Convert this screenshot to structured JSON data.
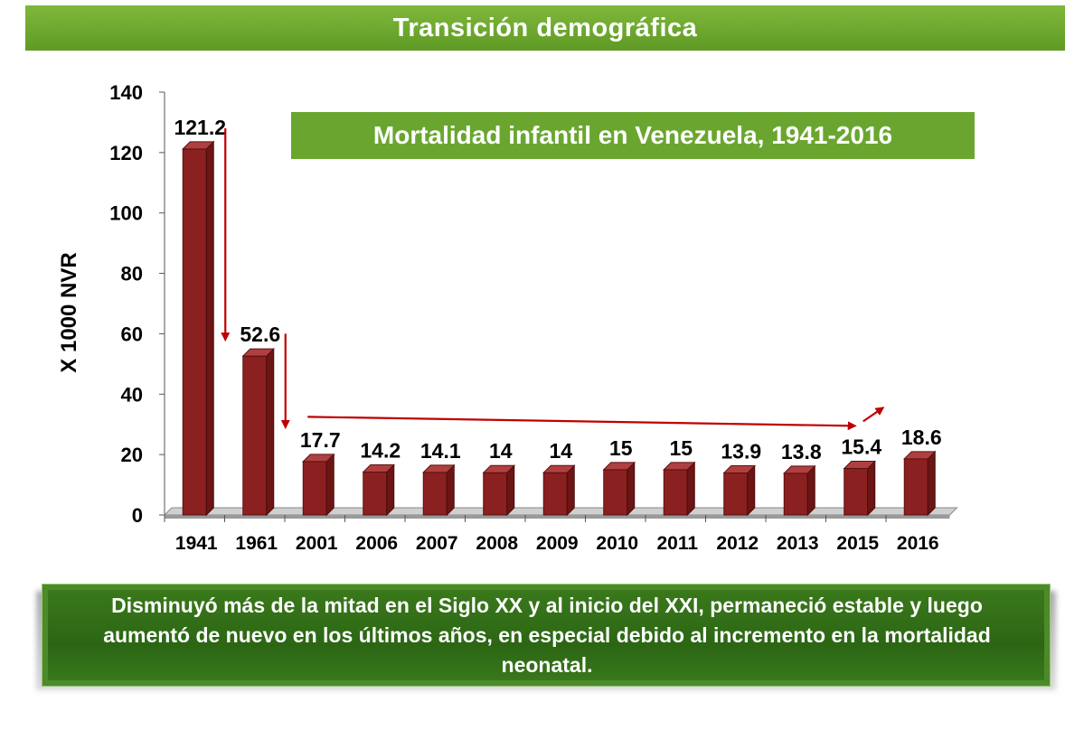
{
  "banner": {
    "title": "Transición demográfica"
  },
  "chart_data": {
    "type": "bar",
    "title": "Mortalidad infantil en Venezuela, 1941-2016",
    "ylabel": "X 1000 NVR",
    "xlabel": "",
    "ylim": [
      0,
      140
    ],
    "yticks": [
      0,
      20,
      40,
      60,
      80,
      100,
      120,
      140
    ],
    "categories": [
      "1941",
      "1961",
      "2001",
      "2006",
      "2007",
      "2008",
      "2009",
      "2010",
      "2011",
      "2012",
      "2013",
      "2015",
      "2016"
    ],
    "values": [
      121.2,
      52.6,
      17.7,
      14.2,
      14.1,
      14,
      14,
      15,
      15,
      13.9,
      13.8,
      15.4,
      18.6
    ],
    "value_labels": [
      "121.2",
      "52.6",
      "17.7",
      "14.2",
      "14.1",
      "14",
      "14",
      "15",
      "15",
      "13.9",
      "13.8",
      "15.4",
      "18.6"
    ],
    "bar_color": "#8b2020",
    "arrow_color": "#c00000",
    "grid": false,
    "legend": "none"
  },
  "footer": {
    "text": "Disminuyó más de la mitad en el Siglo XX y al inicio del XXI, permaneció estable y luego aumentó de nuevo en los últimos años, en especial debido al incremento  en la mortalidad neonatal."
  },
  "colors": {
    "banner_green": "#6aa62f",
    "box_dark_green": "#2c6614"
  }
}
